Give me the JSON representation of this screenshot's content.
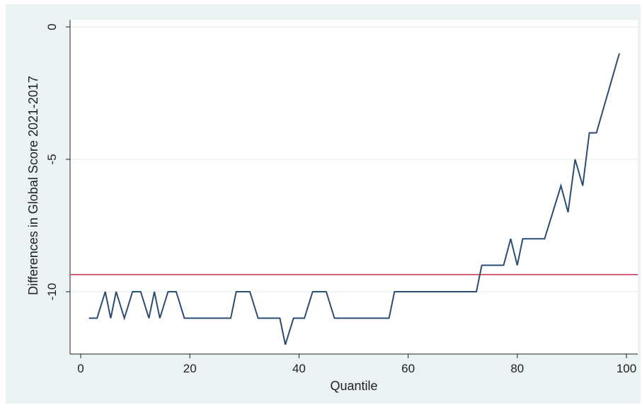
{
  "chart_data": {
    "type": "line",
    "title": "",
    "xlabel": "Quantile",
    "ylabel": "Differences in Global Score 2021-2017",
    "xlim": [
      0,
      102
    ],
    "ylim": [
      -12.3,
      0.2
    ],
    "x_ticks": [
      0,
      20,
      40,
      60,
      80,
      100
    ],
    "y_ticks": [
      0,
      -5,
      -10
    ],
    "grid": true,
    "legend": "none",
    "series": [
      {
        "color": "#2a4d73",
        "points": [
          [
            1.5,
            -11
          ],
          [
            3,
            -11
          ],
          [
            4.5,
            -10
          ],
          [
            5.5,
            -11
          ],
          [
            6.5,
            -10
          ],
          [
            8,
            -11
          ],
          [
            9.5,
            -10
          ],
          [
            11,
            -10
          ],
          [
            12.5,
            -11
          ],
          [
            13.5,
            -10
          ],
          [
            14.5,
            -11
          ],
          [
            16,
            -10
          ],
          [
            17.5,
            -10
          ],
          [
            19,
            -11
          ],
          [
            27.5,
            -11
          ],
          [
            28.5,
            -10
          ],
          [
            31,
            -10
          ],
          [
            32.5,
            -11
          ],
          [
            36.5,
            -11
          ],
          [
            37.5,
            -12
          ],
          [
            39,
            -11
          ],
          [
            41,
            -11
          ],
          [
            42.5,
            -10
          ],
          [
            45,
            -10
          ],
          [
            46.5,
            -11
          ],
          [
            56.5,
            -11
          ],
          [
            57.5,
            -10
          ],
          [
            72.5,
            -10
          ],
          [
            73.5,
            -9
          ],
          [
            77.5,
            -9
          ],
          [
            78.8,
            -8
          ],
          [
            80,
            -9
          ],
          [
            81,
            -8
          ],
          [
            85,
            -8
          ],
          [
            88,
            -6
          ],
          [
            89.3,
            -7
          ],
          [
            90.6,
            -5
          ],
          [
            92,
            -6
          ],
          [
            93.2,
            -4
          ],
          [
            94.5,
            -4
          ],
          [
            98.7,
            -1
          ]
        ]
      }
    ],
    "reference_line": {
      "y": -9.35,
      "color": "#c8324a"
    }
  }
}
